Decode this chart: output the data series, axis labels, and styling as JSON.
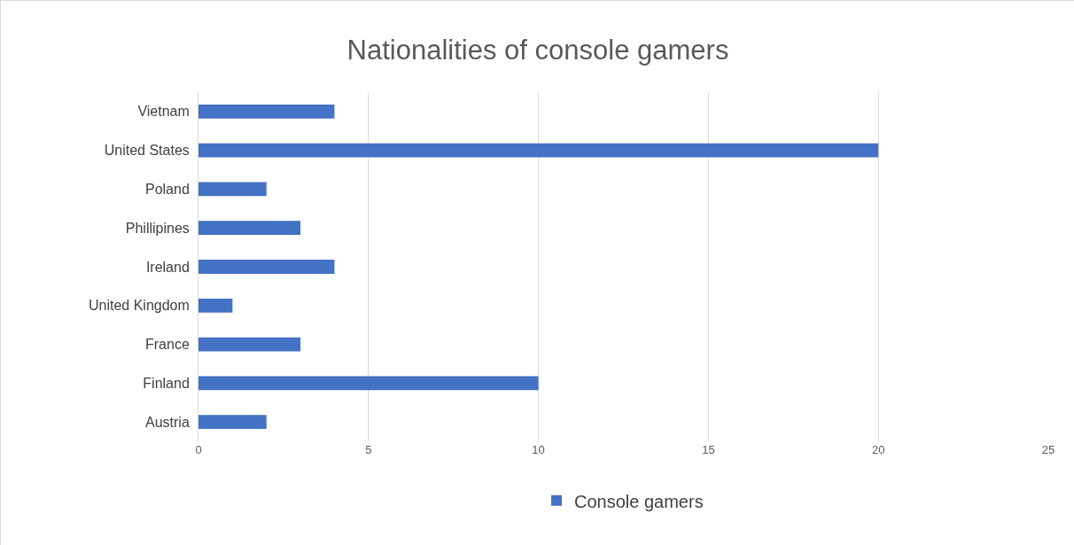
{
  "chart_data": {
    "type": "bar",
    "orientation": "horizontal",
    "title": "Nationalities of console gamers",
    "categories": [
      "Vietnam",
      "United States",
      "Poland",
      "Phillipines",
      "Ireland",
      "United Kingdom",
      "France",
      "Finland",
      "Austria"
    ],
    "series": [
      {
        "name": "Console gamers",
        "color": "#4472c4",
        "values": [
          4,
          20,
          2,
          3,
          4,
          1,
          3,
          10,
          2
        ]
      }
    ],
    "xlim": [
      0,
      25
    ],
    "xticks": [
      0,
      5,
      10,
      15,
      20,
      25
    ],
    "grid": "x",
    "legend": "bottom"
  }
}
